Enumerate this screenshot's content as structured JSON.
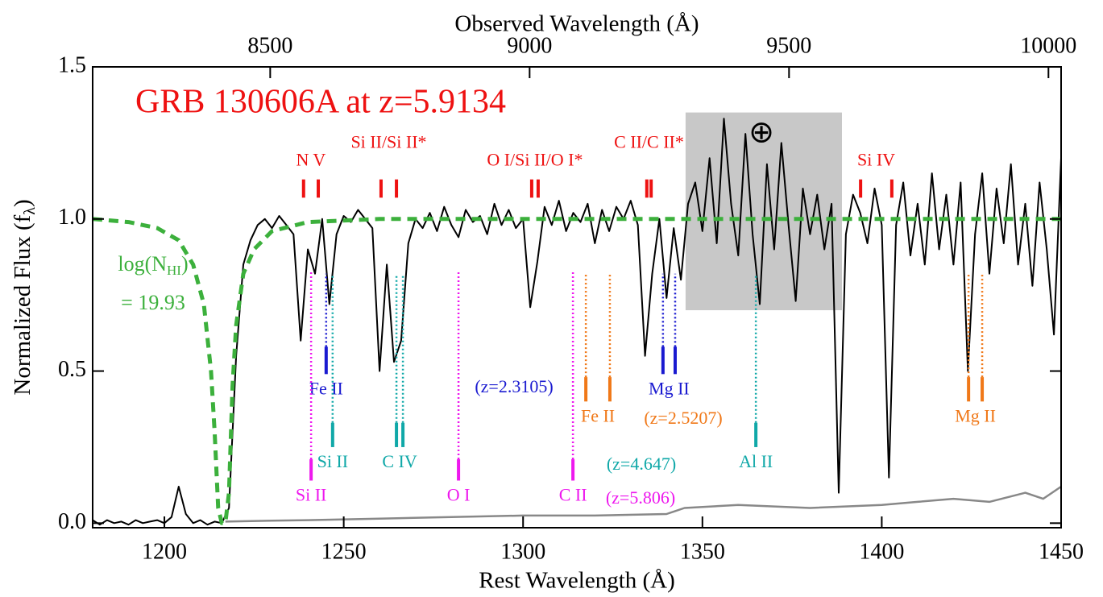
{
  "chart_data": {
    "type": "line",
    "title": "GRB 130606A at z=5.9134",
    "xlabel": "Rest Wavelength (Å)",
    "x2label": "Observed Wavelength (Å)",
    "ylabel": {
      "text": "Normalized Flux (f",
      "sub": "λ",
      "tail": ")"
    },
    "nhi_label": {
      "text": "log(N",
      "sub": "HI",
      "tail": ")"
    },
    "nhi_value": "= 19.93",
    "earth_symbol": "⊕",
    "xlim": [
      1180,
      1450
    ],
    "xticks": [
      1200,
      1250,
      1300,
      1350,
      1400,
      1450
    ],
    "x2lim": [
      8157.8,
      10024.4
    ],
    "x2ticks": [
      8500,
      9000,
      9500,
      10000
    ],
    "ylim": [
      -0.015,
      1.5
    ],
    "yticks": [
      {
        "value": 0,
        "label": "0.0"
      },
      {
        "value": 0.5,
        "label": "0.5"
      },
      {
        "value": 1,
        "label": "1.0"
      },
      {
        "value": 1.5,
        "label": "1.5"
      }
    ],
    "shaded_region": {
      "xlim": [
        1345.3,
        1388.9
      ],
      "ylim": [
        0.7,
        1.35
      ],
      "color": "#c8c8c8"
    },
    "series": [
      {
        "color": "#000000",
        "width": 2,
        "x": [
          1180,
          1182,
          1184,
          1186,
          1188,
          1190,
          1192,
          1194,
          1196,
          1198,
          1200,
          1202,
          1204,
          1206,
          1208,
          1210,
          1212,
          1214,
          1216,
          1218,
          1220,
          1222,
          1224,
          1226,
          1228,
          1230,
          1232,
          1234,
          1236,
          1238,
          1240,
          1242,
          1244,
          1246,
          1248,
          1250,
          1252,
          1254,
          1256,
          1258,
          1260,
          1262,
          1264,
          1266,
          1268,
          1270,
          1272,
          1274,
          1276,
          1278,
          1280,
          1282,
          1284,
          1286,
          1288,
          1290,
          1292,
          1294,
          1296,
          1298,
          1300,
          1302,
          1304,
          1306,
          1308,
          1310,
          1312,
          1314,
          1316,
          1318,
          1320,
          1322,
          1324,
          1326,
          1328,
          1330,
          1332,
          1334,
          1336,
          1338,
          1340,
          1342,
          1344,
          1346,
          1348,
          1350,
          1352,
          1354,
          1356,
          1358,
          1360,
          1362,
          1364,
          1366,
          1368,
          1370,
          1372,
          1374,
          1376,
          1378,
          1380,
          1382,
          1384,
          1386,
          1388,
          1390,
          1392,
          1394,
          1396,
          1398,
          1400,
          1402,
          1404,
          1406,
          1408,
          1410,
          1412,
          1414,
          1416,
          1418,
          1420,
          1422,
          1424,
          1426,
          1428,
          1430,
          1432,
          1434,
          1436,
          1438,
          1440,
          1442,
          1444,
          1446,
          1448,
          1450
        ],
        "values": [
          0.01,
          -0.005,
          0.01,
          0,
          0.005,
          -0.005,
          0.01,
          0,
          0.005,
          0.01,
          0,
          0.02,
          0.12,
          0.03,
          0,
          0.01,
          -0.005,
          0.005,
          0,
          0.05,
          0.55,
          0.85,
          0.93,
          0.98,
          1.0,
          0.97,
          1.01,
          0.98,
          0.95,
          0.6,
          0.9,
          0.82,
          1.0,
          0.72,
          0.95,
          1.01,
          0.99,
          1.03,
          1.0,
          0.97,
          0.5,
          0.85,
          0.53,
          0.6,
          0.92,
          1.0,
          0.97,
          1.02,
          0.96,
          1.04,
          0.98,
          0.94,
          1.03,
          0.99,
          1.01,
          0.95,
          1.05,
          0.98,
          1.03,
          0.97,
          1.0,
          0.71,
          0.86,
          1.04,
          0.98,
          1.06,
          0.96,
          1.02,
          0.99,
          1.05,
          0.92,
          1.03,
          0.96,
          1.04,
          1.0,
          1.06,
          0.98,
          0.55,
          0.82,
          1.0,
          0.74,
          0.97,
          0.8,
          1.05,
          1.12,
          0.96,
          1.2,
          0.92,
          1.33,
          1.05,
          0.88,
          1.28,
          0.95,
          0.72,
          1.18,
          0.9,
          1.25,
          0.98,
          0.73,
          1.1,
          0.95,
          1.08,
          0.9,
          1.05,
          0.1,
          0.95,
          1.08,
          1.02,
          0.92,
          1.1,
          0.98,
          0.15,
          0.98,
          1.12,
          0.88,
          1.05,
          0.85,
          1.15,
          0.9,
          1.08,
          0.85,
          1.12,
          0.5,
          0.95,
          1.15,
          0.82,
          1.1,
          0.92,
          1.18,
          0.85,
          1.05,
          0.78,
          1.12,
          0.9,
          0.62,
          1.2
        ]
      },
      {
        "color": "#888888",
        "width": 2.5,
        "x": [
          1217,
          1230,
          1240,
          1260,
          1280,
          1300,
          1320,
          1340,
          1345,
          1360,
          1380,
          1400,
          1410,
          1420,
          1430,
          1440,
          1445,
          1450
        ],
        "values": [
          0.005,
          0.008,
          0.01,
          0.015,
          0.02,
          0.025,
          0.025,
          0.03,
          0.05,
          0.06,
          0.05,
          0.06,
          0.07,
          0.08,
          0.07,
          0.1,
          0.08,
          0.12
        ]
      },
      {
        "color": "#3cb03c",
        "width": 5,
        "dashed": true,
        "x": [
          1180,
          1190,
          1198,
          1204,
          1208,
          1211,
          1213,
          1214,
          1215,
          1216,
          1217,
          1218,
          1219,
          1220,
          1222,
          1225,
          1230,
          1240,
          1260,
          1450
        ],
        "values": [
          1.0,
          0.99,
          0.97,
          0.93,
          0.85,
          0.72,
          0.5,
          0.3,
          0.05,
          0,
          0,
          0.1,
          0.45,
          0.65,
          0.82,
          0.9,
          0.96,
          0.99,
          1.0,
          1.0
        ]
      }
    ],
    "line_systems": [
      {
        "color": "#ee1111",
        "tick_ylim": [
          1.07,
          1.13
        ],
        "lines": [
          {
            "label": "N V",
            "wavelengths": [
              1238.8,
              1242.9
            ]
          },
          {
            "label": "Si II/Si II*",
            "wavelengths": [
              1260.4,
              1264.7
            ]
          },
          {
            "label": "O I/Si II/O I*",
            "wavelengths": [
              1302.4,
              1304.2
            ]
          },
          {
            "label": "C II/C II*",
            "wavelengths": [
              1334.5,
              1335.7
            ]
          },
          {
            "label": "Si IV",
            "wavelengths": [
              1394.1,
              1402.8
            ]
          }
        ]
      },
      {
        "color": "#1a1ad0",
        "tick_ylim": [
          0.49,
          0.58
        ],
        "dotted_top": 0.82,
        "redshift_label": "(z=2.3105)",
        "lines": [
          {
            "label": "Fe II",
            "wavelengths": [
              1245.1
            ]
          },
          {
            "label": "Mg II",
            "wavelengths": [
              1339.0,
              1342.4
            ]
          }
        ]
      },
      {
        "color": "#f07818",
        "tick_ylim": [
          0.4,
          0.48
        ],
        "dotted_top": 0.82,
        "redshift_label": "(z=2.5207)",
        "lines": [
          {
            "label": "Fe II",
            "wavelengths": [
              1317.5,
              1324.2
            ]
          },
          {
            "label": "Mg II",
            "wavelengths": [
              1424.2,
              1428.0
            ]
          }
        ]
      },
      {
        "color": "#10a8a8",
        "tick_ylim": [
          0.25,
          0.33
        ],
        "dotted_top": 0.82,
        "redshift_label": "(z=4.647)",
        "lines": [
          {
            "label": "Si II",
            "wavelengths": [
              1246.9
            ]
          },
          {
            "label": "C IV",
            "wavelengths": [
              1264.7,
              1266.5
            ]
          },
          {
            "label": "Al II",
            "wavelengths": [
              1364.9
            ]
          }
        ]
      },
      {
        "color": "#ee18ee",
        "tick_ylim": [
          0.14,
          0.21
        ],
        "dotted_top": 0.83,
        "redshift_label": "(z=5.806)",
        "lines": [
          {
            "label": "Si II",
            "wavelengths": [
              1240.9
            ]
          },
          {
            "label": "O I",
            "wavelengths": [
              1282.0
            ]
          },
          {
            "label": "C II",
            "wavelengths": [
              1313.9
            ]
          }
        ]
      }
    ]
  }
}
